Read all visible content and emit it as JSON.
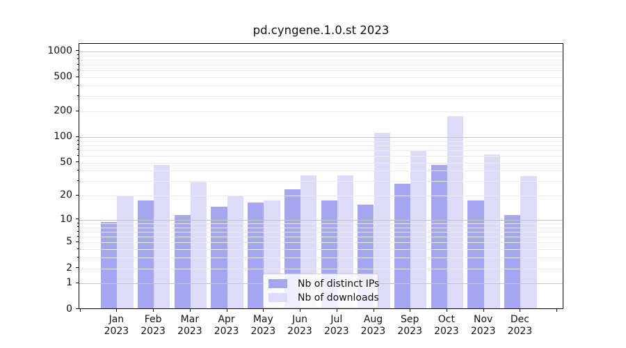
{
  "chart_data": {
    "type": "bar",
    "title": "pd.cyngene.1.0.st 2023",
    "categories": [
      "Jan 2023",
      "Feb 2023",
      "Mar 2023",
      "Apr 2023",
      "May 2023",
      "Jun 2023",
      "Jul 2023",
      "Aug 2023",
      "Sep 2023",
      "Oct 2023",
      "Nov 2023",
      "Dec 2023"
    ],
    "series": [
      {
        "name": "Nb of distinct IPs",
        "color": "#a5a5f0",
        "values": [
          9,
          17,
          11,
          14,
          16,
          23,
          17,
          15,
          27,
          45,
          17,
          11
        ]
      },
      {
        "name": "Nb of downloads",
        "color": "#dcdcf8",
        "values": [
          19,
          45,
          28,
          19,
          17,
          34,
          34,
          108,
          66,
          170,
          60,
          33
        ]
      }
    ],
    "xlabel": "",
    "ylabel": "",
    "yscale": "log1p",
    "y_tick_values": [
      0,
      1,
      2,
      5,
      10,
      20,
      50,
      100,
      200,
      500,
      1000
    ],
    "y_tick_labels": [
      "0",
      "1",
      "2",
      "5",
      "10",
      "20",
      "50",
      "100",
      "200",
      "500",
      "1000"
    ],
    "ylim": [
      0,
      1250
    ],
    "grid": "horizontal major+minor",
    "legend_position": "lower center"
  },
  "colors": {
    "bar_distinct_ips": "#a5a5f0",
    "bar_downloads": "#dcdcf8",
    "grid_major": "#c4c4c4",
    "grid_minor": "#ebebeb",
    "axis_line": "#000000",
    "text": "#111111",
    "legend_border": "#cccccc",
    "background": "#ffffff"
  }
}
